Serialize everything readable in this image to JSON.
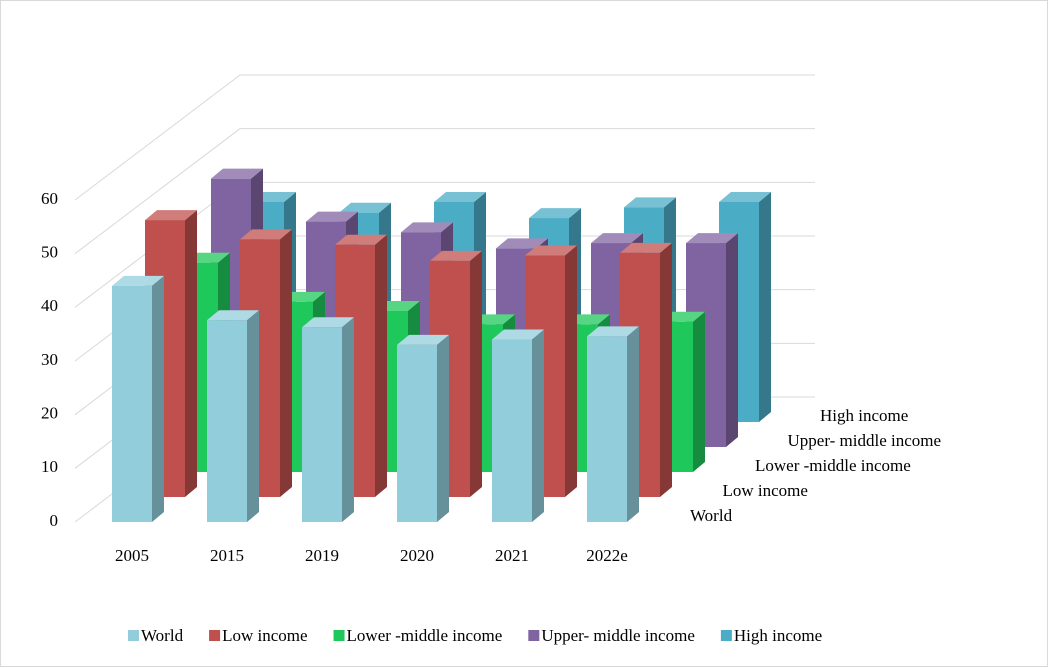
{
  "chart_data": {
    "type": "bar3d",
    "categories": [
      "2005",
      "2015",
      "2019",
      "2020",
      "2021",
      "2022e"
    ],
    "series": [
      {
        "name": "World",
        "color": "#92cddc",
        "values": [
          44,
          37.6,
          36.3,
          33,
          34,
          34.6
        ]
      },
      {
        "name": "Low income",
        "color": "#c0504d",
        "values": [
          51.6,
          48,
          47,
          44,
          45,
          45.5
        ]
      },
      {
        "name": "Lower -middle income",
        "color": "#1ec85a",
        "values": [
          39,
          31.7,
          30,
          27.5,
          27.5,
          28
        ]
      },
      {
        "name": "Upper- middle income",
        "color": "#8064a2",
        "values": [
          50,
          42,
          40,
          37,
          38,
          38
        ]
      },
      {
        "name": "High income",
        "color": "#4bacc6",
        "values": [
          41,
          39,
          41,
          38,
          40,
          41
        ]
      }
    ],
    "ylim": [
      0,
      60
    ],
    "yticks": [
      0,
      10,
      20,
      30,
      40,
      50,
      60
    ],
    "grid": true,
    "legend": "bottom"
  }
}
